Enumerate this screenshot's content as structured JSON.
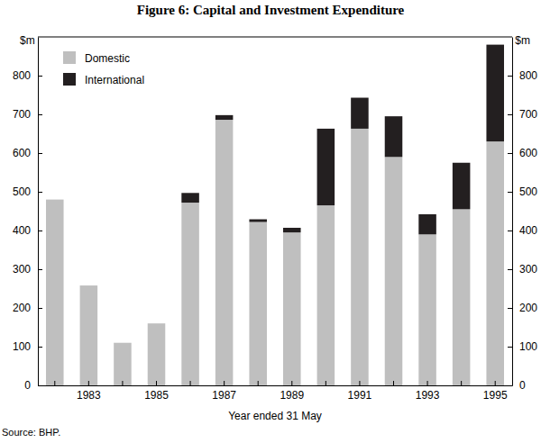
{
  "chart_data": {
    "type": "bar",
    "title": "Figure 6: Capital and Investment Expenditure",
    "xlabel": "Year ended 31 May",
    "ylabel": "$m",
    "source": "Source:  BHP.",
    "categories": [
      null,
      "1983",
      null,
      "1985",
      null,
      "1987",
      null,
      "1989",
      null,
      "1991",
      null,
      "1993",
      null,
      "1995"
    ],
    "stacked": true,
    "legend": "upper left",
    "ylim": [
      0,
      900
    ],
    "yticks": [
      0,
      100,
      200,
      300,
      400,
      500,
      600,
      700,
      800
    ],
    "series": [
      {
        "name": "Domestic",
        "color": "#bfbfbf",
        "values": [
          480,
          258,
          110,
          160,
          472,
          686,
          422,
          395,
          465,
          663,
          590,
          390,
          455,
          630
        ]
      },
      {
        "name": "International",
        "color": "#231f20",
        "values": [
          0,
          0,
          0,
          0,
          25,
          12,
          7,
          12,
          198,
          80,
          105,
          52,
          120,
          250
        ]
      }
    ]
  }
}
